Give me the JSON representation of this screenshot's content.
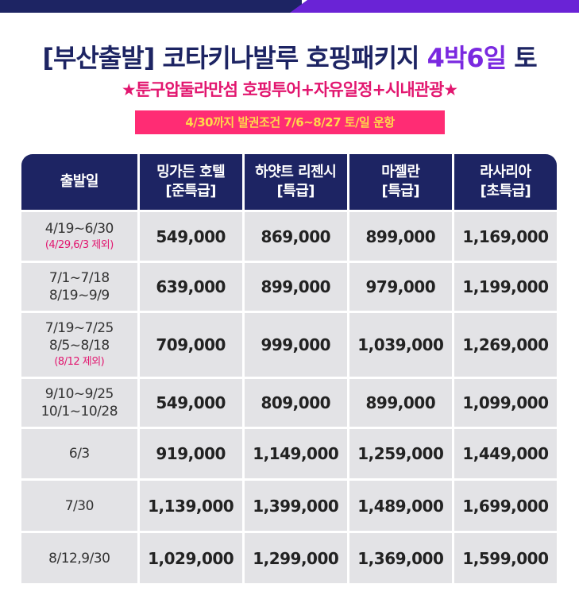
{
  "header": {
    "title_main": "[부산출발] 코타키나발루 호핑패키지 ",
    "title_accent": "4박6일",
    "title_tail": " 토",
    "subtitle": "★툰구압둘라만섬 호핑투어+자유일정+시내관광★",
    "notice": "4/30까지 발권조건 7/6~8/27 토/일 운항"
  },
  "colors": {
    "navy": "#1d2463",
    "purple": "#7a29e0",
    "pink": "#e2166f",
    "notice_bg": "#ff2c74",
    "notice_text": "#ffd84a",
    "cell_bg": "#e3e3e6"
  },
  "table": {
    "headers": [
      {
        "line1": "출발일",
        "line2": ""
      },
      {
        "line1": "밍가든 호텔",
        "line2": "[준특급]"
      },
      {
        "line1": "하얏트 리젠시",
        "line2": "[특급]"
      },
      {
        "line1": "마젤란",
        "line2": "[특급]"
      },
      {
        "line1": "라사리아",
        "line2": "[초특급]"
      }
    ],
    "rows": [
      {
        "dates": [
          "4/19~6/30"
        ],
        "note": "(4/29,6/3 제외)",
        "prices": [
          "549,000",
          "869,000",
          "899,000",
          "1,169,000"
        ]
      },
      {
        "dates": [
          "7/1~7/18",
          "8/19~9/9"
        ],
        "note": "",
        "prices": [
          "639,000",
          "899,000",
          "979,000",
          "1,199,000"
        ]
      },
      {
        "dates": [
          "7/19~7/25",
          "8/5~8/18"
        ],
        "note": "(8/12 제외)",
        "prices": [
          "709,000",
          "999,000",
          "1,039,000",
          "1,269,000"
        ]
      },
      {
        "dates": [
          "9/10~9/25",
          "10/1~10/28"
        ],
        "note": "",
        "prices": [
          "549,000",
          "809,000",
          "899,000",
          "1,099,000"
        ]
      },
      {
        "dates": [
          "6/3"
        ],
        "note": "",
        "prices": [
          "919,000",
          "1,149,000",
          "1,259,000",
          "1,449,000"
        ]
      },
      {
        "dates": [
          "7/30"
        ],
        "note": "",
        "prices": [
          "1,139,000",
          "1,399,000",
          "1,489,000",
          "1,699,000"
        ]
      },
      {
        "dates": [
          "8/12,9/30"
        ],
        "note": "",
        "prices": [
          "1,029,000",
          "1,299,000",
          "1,369,000",
          "1,599,000"
        ]
      }
    ]
  }
}
